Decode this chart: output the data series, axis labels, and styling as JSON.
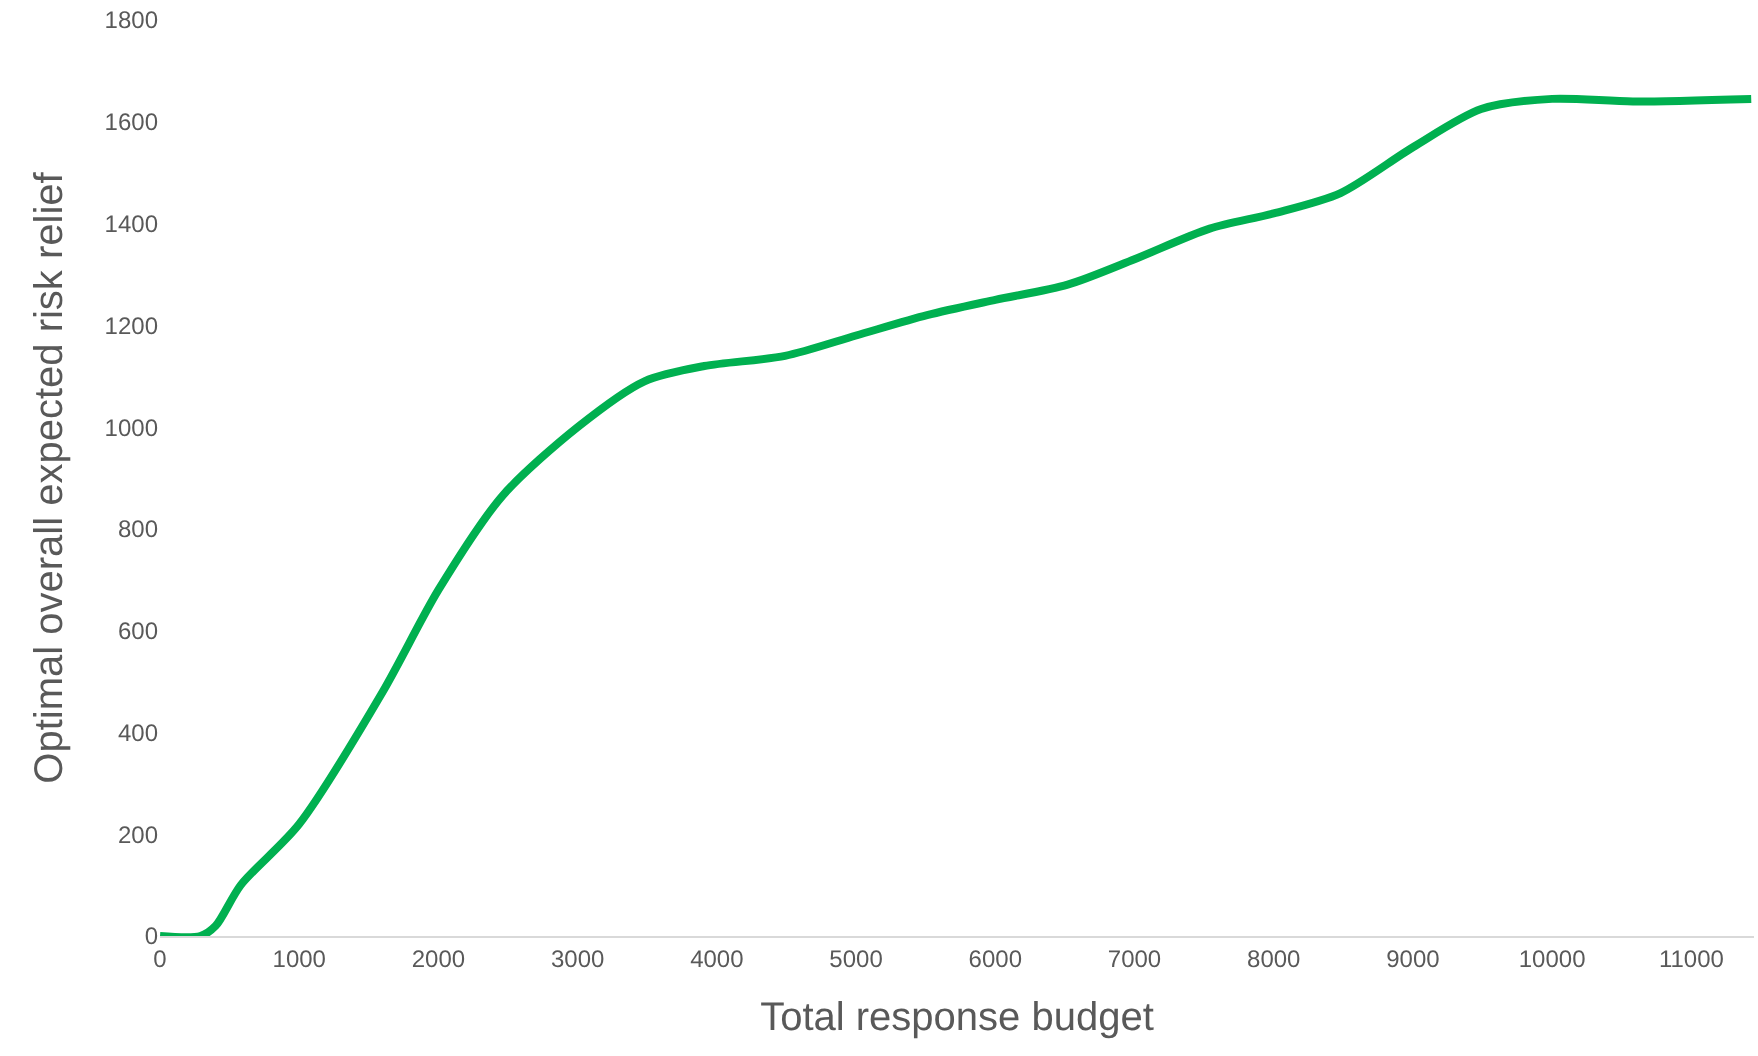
{
  "chart_data": {
    "type": "line",
    "xlabel": "Total response budget",
    "ylabel": "Optimal overall expected risk relief",
    "x": [
      0,
      290,
      400,
      580,
      1000,
      1600,
      2000,
      2460,
      3000,
      3480,
      3910,
      4490,
      5000,
      5510,
      6000,
      6520,
      7000,
      7540,
      8000,
      8480,
      9000,
      9490,
      10000,
      10580,
      11430
    ],
    "series": [
      {
        "color": "#00b050",
        "values": [
          0,
          0,
          20,
          100,
          220,
          480,
          680,
          865,
          1000,
          1090,
          1120,
          1140,
          1180,
          1220,
          1250,
          1280,
          1330,
          1390,
          1420,
          1460,
          1550,
          1625,
          1645,
          1640,
          1645
        ]
      }
    ],
    "xlim": [
      0,
      11450
    ],
    "xticks": [
      0,
      1000,
      2000,
      3000,
      4000,
      5000,
      6000,
      7000,
      8000,
      9000,
      10000,
      11000
    ],
    "ylim": [
      0,
      1800
    ],
    "yticks": [
      0,
      200,
      400,
      600,
      800,
      1000,
      1200,
      1400,
      1600,
      1800
    ],
    "legend": false,
    "marker": "none",
    "line_style": "solid"
  }
}
